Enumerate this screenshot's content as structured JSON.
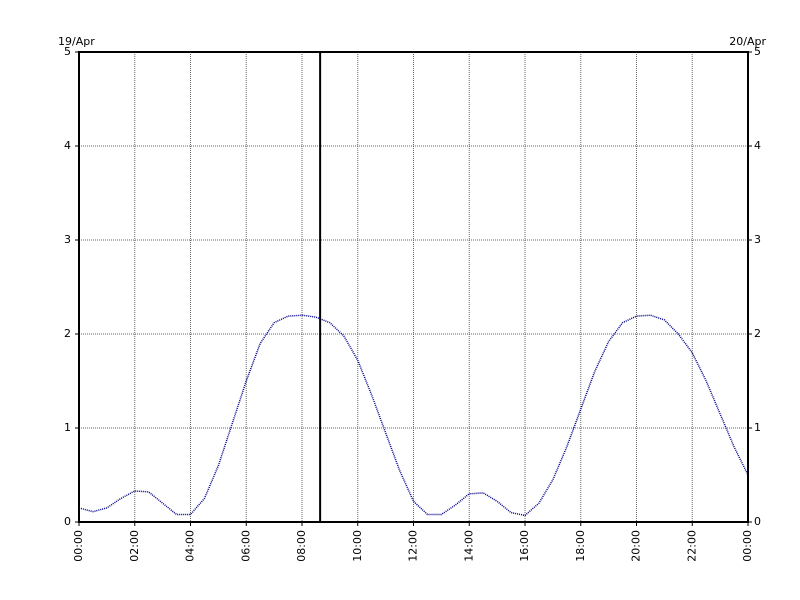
{
  "chart_data": {
    "type": "line",
    "start_label": "19/Apr",
    "end_label": "20/Apr",
    "x": [
      0,
      0.5,
      1,
      1.5,
      2,
      2.5,
      3,
      3.5,
      4,
      4.5,
      5,
      5.5,
      6,
      6.5,
      7,
      7.5,
      8,
      8.5,
      9,
      9.5,
      10,
      10.5,
      11,
      11.5,
      12,
      12.5,
      13,
      13.5,
      14,
      14.5,
      15,
      15.5,
      16,
      16.5,
      17,
      17.5,
      18,
      18.5,
      19,
      19.5,
      20,
      20.5,
      21,
      21.5,
      22,
      22.5,
      23,
      23.5,
      24
    ],
    "series": [
      {
        "color": "#00008b",
        "values": [
          0.15,
          0.11,
          0.15,
          0.25,
          0.33,
          0.32,
          0.2,
          0.08,
          0.08,
          0.25,
          0.6,
          1.05,
          1.5,
          1.9,
          2.12,
          2.19,
          2.2,
          2.18,
          2.12,
          1.98,
          1.72,
          1.35,
          0.95,
          0.55,
          0.22,
          0.08,
          0.08,
          0.18,
          0.3,
          0.31,
          0.22,
          0.1,
          0.07,
          0.2,
          0.45,
          0.8,
          1.2,
          1.6,
          1.92,
          2.12,
          2.19,
          2.2,
          2.15,
          2.0,
          1.8,
          1.5,
          1.15,
          0.8,
          0.5
        ]
      }
    ],
    "now_marker": 8.65,
    "xlim": [
      0,
      24
    ],
    "xticks": [
      {
        "value": 0,
        "label": "00:00"
      },
      {
        "value": 2,
        "label": "02:00"
      },
      {
        "value": 4,
        "label": "04:00"
      },
      {
        "value": 6,
        "label": "06:00"
      },
      {
        "value": 8,
        "label": "08:00"
      },
      {
        "value": 10,
        "label": "10:00"
      },
      {
        "value": 12,
        "label": "12:00"
      },
      {
        "value": 14,
        "label": "14:00"
      },
      {
        "value": 16,
        "label": "16:00"
      },
      {
        "value": 18,
        "label": "18:00"
      },
      {
        "value": 20,
        "label": "20:00"
      },
      {
        "value": 22,
        "label": "22:00"
      },
      {
        "value": 24,
        "label": "00:00"
      }
    ],
    "ylim": [
      0,
      5
    ],
    "yticks": [
      0,
      1,
      2,
      3,
      4,
      5
    ],
    "grid": true
  }
}
